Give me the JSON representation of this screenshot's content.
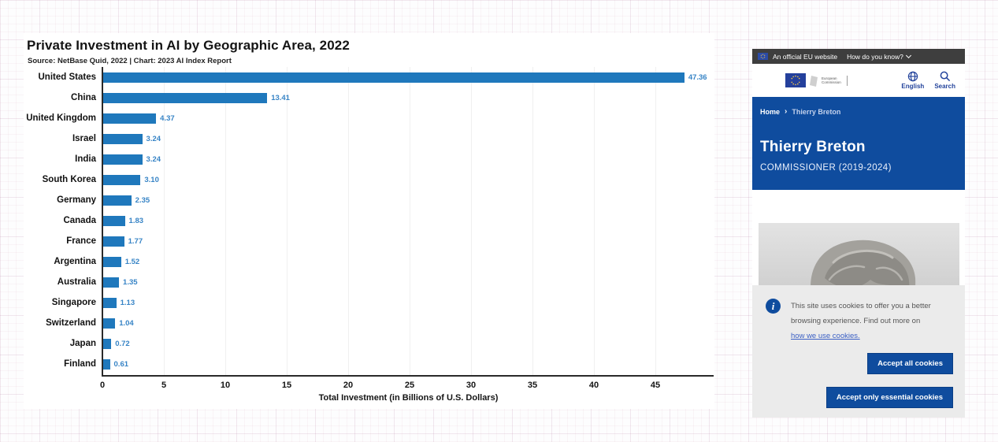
{
  "chart_data": {
    "type": "bar",
    "orientation": "horizontal",
    "title": "Private Investment in AI by Geographic Area, 2022",
    "source": "Source: NetBase Quid, 2022 | Chart: 2023 AI Index Report",
    "xlabel": "Total Investment (in Billions of U.S. Dollars)",
    "categories": [
      "United States",
      "China",
      "United Kingdom",
      "Israel",
      "India",
      "South Korea",
      "Germany",
      "Canada",
      "France",
      "Argentina",
      "Australia",
      "Singapore",
      "Switzerland",
      "Japan",
      "Finland"
    ],
    "values": [
      47.36,
      13.41,
      4.37,
      3.24,
      3.24,
      3.1,
      2.35,
      1.83,
      1.77,
      1.52,
      1.35,
      1.13,
      1.04,
      0.72,
      0.61
    ],
    "value_labels": [
      "47.36",
      "13.41",
      "4.37",
      "3.24",
      "3.24",
      "3.10",
      "2.35",
      "1.83",
      "1.77",
      "1.52",
      "1.35",
      "1.13",
      "1.04",
      "0.72",
      "0.61"
    ],
    "xticks": [
      0,
      5,
      10,
      15,
      20,
      25,
      30,
      35,
      40,
      45
    ],
    "xlim": [
      0,
      50
    ],
    "grid": true,
    "legend": "none",
    "bar_color": "#1f78bc",
    "value_color": "#3784c6"
  },
  "eu_site": {
    "topbar": {
      "official_text": "An official EU website",
      "how_text": "How do you know?"
    },
    "header": {
      "logo_line1": "European",
      "logo_line2": "Commission",
      "language_label": "English",
      "search_label": "Search"
    },
    "breadcrumb": {
      "home": "Home",
      "separator": "›",
      "current": "Thierry Breton"
    },
    "hero": {
      "title": "Thierry Breton",
      "subtitle": "COMMISSIONER (2019-2024)"
    },
    "cookie": {
      "line1": "This site uses cookies to offer you a better",
      "line2": "browsing experience. Find out more on",
      "link": "how we use cookies.",
      "accept_all": "Accept all cookies",
      "accept_essential": "Accept only essential cookies"
    },
    "colors": {
      "hero_blue": "#0f4c9e",
      "topbar_dark": "#3e3e3e",
      "cookie_bg": "#ebebeb"
    }
  }
}
